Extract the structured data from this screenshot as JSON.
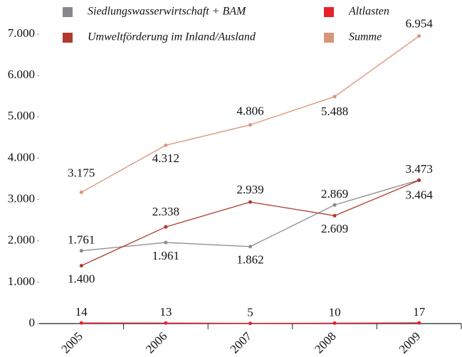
{
  "chart_data": {
    "type": "line",
    "categories": [
      "2005",
      "2006",
      "2007",
      "2008",
      "2009"
    ],
    "series": [
      {
        "name": "Siedlungswasserwirtschaft + BAM",
        "color": "#88888c",
        "values": [
          1761,
          1961,
          1862,
          2869,
          3473
        ],
        "value_labels": [
          "1.761",
          "1.961",
          "1.862",
          "2.869",
          "3.473"
        ]
      },
      {
        "name": "Altlasten",
        "color": "#e8202a",
        "values": [
          14,
          13,
          5,
          10,
          17
        ],
        "value_labels": [
          "14",
          "13",
          "5",
          "10",
          "17"
        ]
      },
      {
        "name": "Umweltförderung im Inland/Ausland",
        "color": "#b03a2e",
        "values": [
          1400,
          2338,
          2939,
          2609,
          3464
        ],
        "value_labels": [
          "1.400",
          "2.338",
          "2.939",
          "2.609",
          "3.464"
        ]
      },
      {
        "name": "Summe",
        "color": "#d9957a",
        "values": [
          3175,
          4312,
          4806,
          5488,
          6954
        ],
        "value_labels": [
          "3.175",
          "4.312",
          "4.806",
          "5.488",
          "6.954"
        ]
      }
    ],
    "ylim": [
      0,
      7000
    ],
    "yticks": [
      0,
      {
        "value": 1000,
        "label": "1.000"
      },
      {
        "value": 2000,
        "label": "2.000"
      },
      {
        "value": 3000,
        "label": "3.000"
      },
      {
        "value": 4000,
        "label": "4.000"
      },
      {
        "value": 5000,
        "label": "5.000"
      },
      {
        "value": 6000,
        "label": "6.000"
      },
      {
        "value": 7000,
        "label": "7.000"
      }
    ],
    "grid": false
  }
}
